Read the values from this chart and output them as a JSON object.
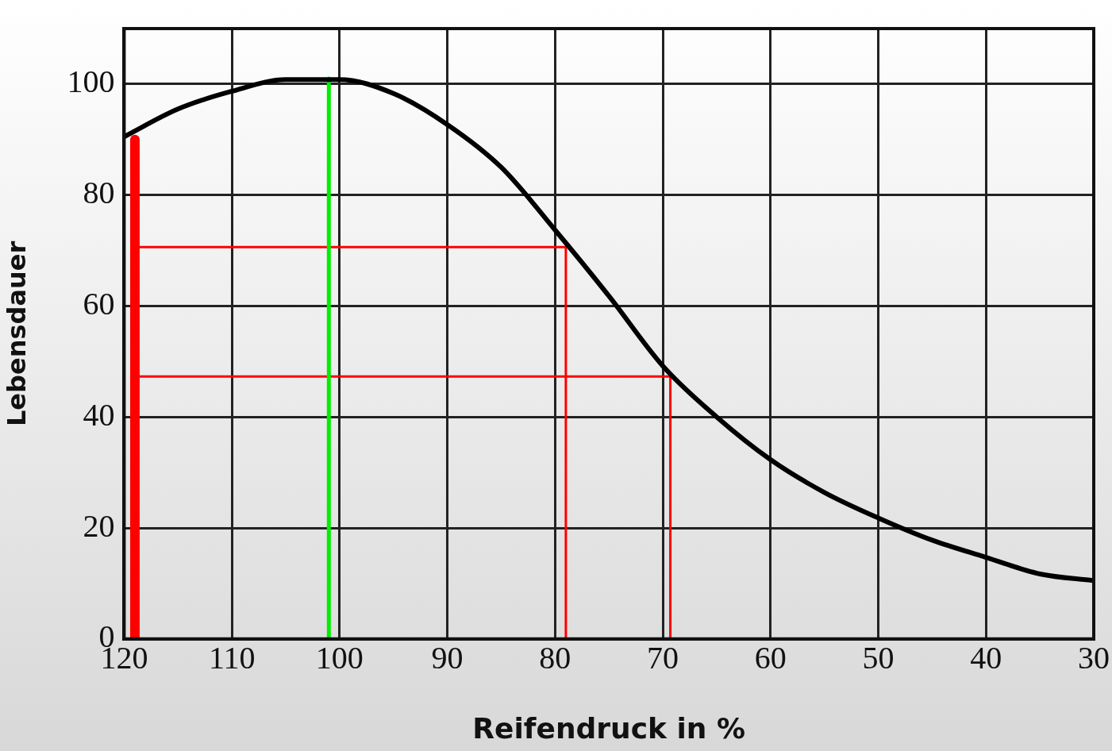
{
  "chart_data": {
    "type": "line",
    "xlabel": "Reifendruck in %",
    "ylabel": "Lebensdauer",
    "xlim": [
      120,
      30
    ],
    "xticks": [
      120,
      110,
      100,
      90,
      80,
      70,
      60,
      50,
      40,
      30
    ],
    "ylim": [
      0,
      110
    ],
    "yticks": [
      0,
      20,
      40,
      60,
      80,
      100
    ],
    "grid": true,
    "legend": false,
    "marker": "none",
    "line_style": "solid",
    "series": [
      {
        "color": "#000000",
        "x": [
          120,
          115,
          110,
          105,
          100,
          95,
          90,
          85,
          80,
          75,
          70,
          65,
          60,
          55,
          50,
          45,
          40,
          35,
          30
        ],
        "values": [
          90.5,
          95.5,
          98.7,
          100.8,
          100.8,
          98.3,
          92.7,
          85,
          73.7,
          61.8,
          49.2,
          40,
          32.3,
          26.4,
          21.8,
          17.8,
          14.7,
          11.7,
          10.5
        ]
      },
      {
        "color": "#ff0000",
        "x": [
          119,
          119
        ],
        "values": [
          0,
          90
        ]
      },
      {
        "color": "#00ee00",
        "x": [
          101,
          101
        ],
        "values": [
          0,
          101
        ]
      },
      {
        "color": "#ff0000",
        "x": [
          119,
          79,
          79
        ],
        "values": [
          70.6,
          70.6,
          0
        ]
      },
      {
        "color": "#ff0000",
        "x": [
          119,
          69.3,
          69.3
        ],
        "values": [
          47.3,
          47.3,
          0
        ]
      }
    ]
  }
}
